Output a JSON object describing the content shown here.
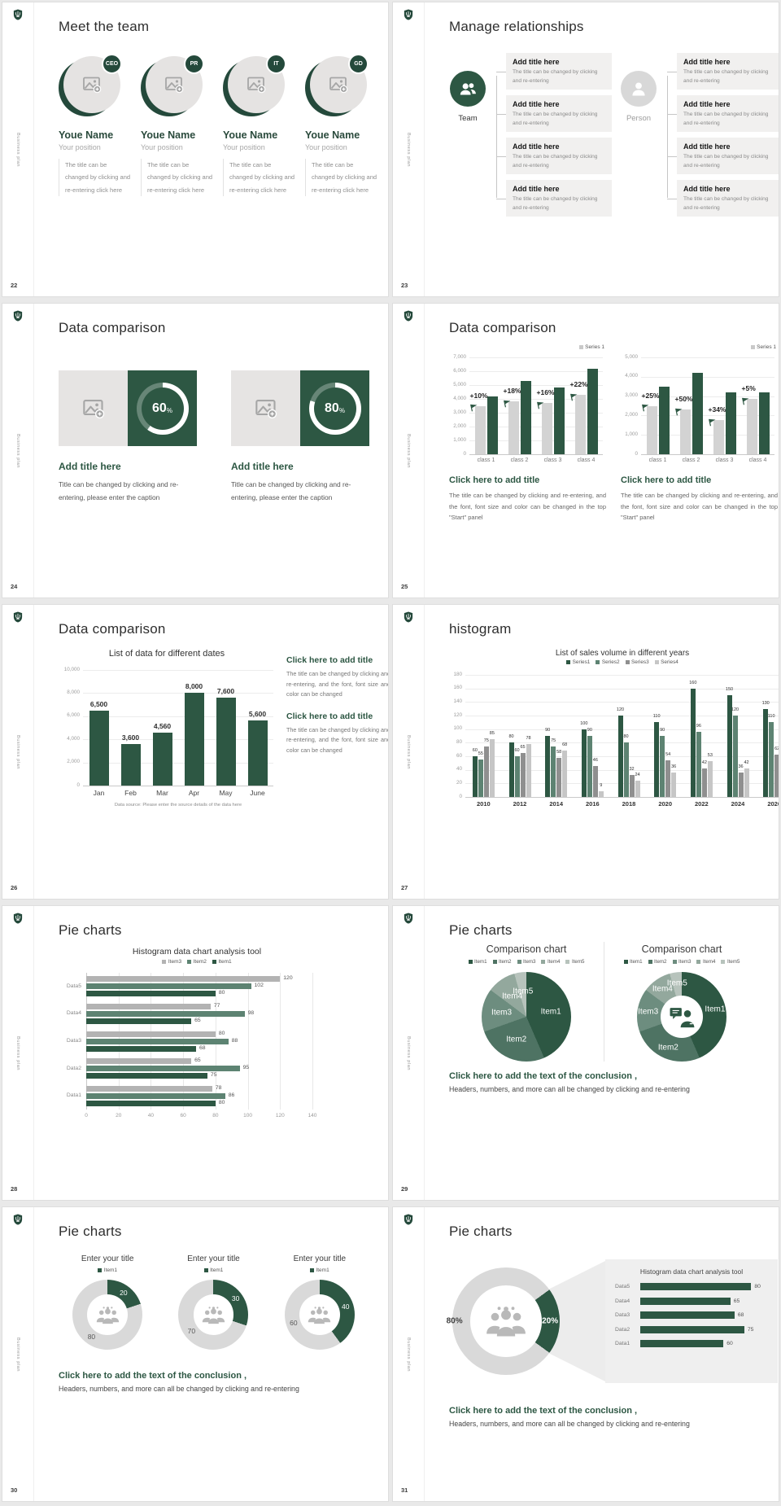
{
  "branding": {
    "sidebar_text": "Business plan",
    "logo": "shield-icon"
  },
  "colors": {
    "dark_green": "#2d5743",
    "mid_green": "#5d8372",
    "gray_series": "#8f8f8f",
    "light_series": "#c6c6c6",
    "placeholder": "#e5e3e2",
    "panel": "#efefef"
  },
  "slides": [
    {
      "num": "22",
      "title": "Meet the team",
      "members": [
        {
          "badge": "CEO",
          "name": "Youe Name",
          "position": "Your position",
          "desc": "The title can be changed by clicking and re-entering click here"
        },
        {
          "badge": "PR",
          "name": "Youe Name",
          "position": "Your position",
          "desc": "The title can be changed by clicking and re-entering click here"
        },
        {
          "badge": "IT",
          "name": "Youe Name",
          "position": "Your position",
          "desc": "The title can be changed by clicking and re-entering click here"
        },
        {
          "badge": "GD",
          "name": "Youe Name",
          "position": "Your position",
          "desc": "The title can be changed by clicking and re-entering click here"
        }
      ]
    },
    {
      "num": "23",
      "title": "Manage relationships",
      "groups": [
        {
          "label": "Team",
          "icon": "team-icon",
          "muted": false,
          "items": [
            {
              "title": "Add title here",
              "desc": "The title can be changed by clicking and re-entering"
            },
            {
              "title": "Add title here",
              "desc": "The title can be changed by clicking and re-entering"
            },
            {
              "title": "Add title here",
              "desc": "The title can be changed by clicking and re-entering"
            },
            {
              "title": "Add title here",
              "desc": "The title can be changed by clicking and re-entering"
            }
          ]
        },
        {
          "label": "Person",
          "icon": "person-icon",
          "muted": true,
          "items": [
            {
              "title": "Add title here",
              "desc": "The title can be changed by clicking and re-entering"
            },
            {
              "title": "Add title here",
              "desc": "The title can be changed by clicking and re-entering"
            },
            {
              "title": "Add title here",
              "desc": "The title can be changed by clicking and re-entering"
            },
            {
              "title": "Add title here",
              "desc": "The title can be changed by clicking and re-entering"
            }
          ]
        }
      ]
    },
    {
      "num": "24",
      "title": "Data comparison",
      "cards": [
        {
          "percent": 60,
          "title": "Add title here",
          "desc": "Title can be changed by clicking and re-entering, please enter the caption"
        },
        {
          "percent": 80,
          "title": "Add title here",
          "desc": "Title can be changed by clicking and re-entering, please enter the caption"
        }
      ]
    },
    {
      "num": "25",
      "title": "Data comparison",
      "blocks": [
        {
          "title": "Click here to add title",
          "desc": "The title can be changed by clicking and re-entering, and the font, font size and color can be changed in the top \"Start\" panel"
        },
        {
          "title": "Click here to add title",
          "desc": "The title can be changed by clicking and re-entering, and the font, font size and color can be changed in the top \"Start\" panel"
        }
      ]
    },
    {
      "num": "26",
      "title": "Data comparison",
      "blocks": [
        {
          "title": "Click here to add title",
          "desc": "The title can be changed by clicking and re-entering, and the font, font size and color can be changed"
        },
        {
          "title": "Click here to add title",
          "desc": "The title can be changed by clicking and re-entering, and the font, font size and color can be changed"
        }
      ]
    },
    {
      "num": "27",
      "title": "histogram"
    },
    {
      "num": "28",
      "title": "Pie charts"
    },
    {
      "num": "29",
      "title": "Pie charts",
      "conclusion": {
        "title": "Click here to add the text of the conclusion ,",
        "desc": "Headers, numbers, and more can all be changed by clicking and re-entering"
      }
    },
    {
      "num": "30",
      "title": "Pie charts",
      "conclusion": {
        "title": "Click here to add the text of the conclusion ,",
        "desc": "Headers, numbers, and more can all be changed by clicking and re-entering"
      }
    },
    {
      "num": "31",
      "title": "Pie charts",
      "conclusion": {
        "title": "Click here to add the text of the conclusion ,",
        "desc": "Headers, numbers, and more can all be changed by clicking and re-entering"
      }
    }
  ],
  "chart_data": {
    "s25_left": {
      "type": "bar",
      "categories": [
        "class 1",
        "class 2",
        "class 3",
        "class 4"
      ],
      "series": [
        {
          "name": "baseline",
          "color": "#d3d3d3",
          "values": [
            3500,
            3800,
            3700,
            4300
          ]
        },
        {
          "name": "Series 1",
          "color": "#2d5743",
          "values": [
            4200,
            5300,
            4800,
            6200
          ]
        }
      ],
      "annotations": [
        "+10%",
        "+18%",
        "+16%",
        "+22%"
      ],
      "ylim": [
        0,
        7000
      ],
      "ytick": 1000,
      "grid": true,
      "legend": [
        {
          "label": "Series 1",
          "color": "#c9c9c9"
        }
      ],
      "legend_pos": "top-right"
    },
    "s25_right": {
      "type": "bar",
      "categories": [
        "class 1",
        "class 2",
        "class 3",
        "class 4"
      ],
      "series": [
        {
          "name": "baseline",
          "color": "#d3d3d3",
          "values": [
            2500,
            2300,
            1750,
            2850
          ]
        },
        {
          "name": "Series 1",
          "color": "#2d5743",
          "values": [
            3500,
            4200,
            3200,
            3200
          ]
        }
      ],
      "annotations": [
        "+25%",
        "+50%",
        "+34%",
        "+5%"
      ],
      "ylim": [
        0,
        5000
      ],
      "ytick": 1000,
      "grid": true,
      "legend": [
        {
          "label": "Series 1",
          "color": "#c9c9c9"
        }
      ],
      "legend_pos": "top-right"
    },
    "s26": {
      "type": "bar",
      "title": "List of data for different dates",
      "categories": [
        "Jan",
        "Feb",
        "Mar",
        "Apr",
        "May",
        "June"
      ],
      "series": [
        {
          "name": "data",
          "color": "#2d5743",
          "values": [
            6500,
            3600,
            4560,
            8000,
            7600,
            5600
          ]
        }
      ],
      "data_labels": true,
      "ylim": [
        0,
        10000
      ],
      "ytick": 2000,
      "grid": true,
      "footnote": "Data source: Please enter the source details of the data here"
    },
    "s27": {
      "type": "bar",
      "title": "List of sales volume in different years",
      "categories": [
        "2010",
        "2012",
        "2014",
        "2016",
        "2018",
        "2020",
        "2022",
        "2024",
        "2026"
      ],
      "series": [
        {
          "name": "Series1",
          "color": "#2d5743",
          "values": [
            60,
            80,
            90,
            100,
            120,
            110,
            160,
            150,
            130
          ]
        },
        {
          "name": "Series2",
          "color": "#5d8372",
          "values": [
            55,
            60,
            75,
            90,
            80,
            90,
            96,
            120,
            110
          ]
        },
        {
          "name": "Series3",
          "color": "#8f8f8f",
          "values": [
            75,
            65,
            58,
            46,
            32,
            54,
            42,
            36,
            62
          ]
        },
        {
          "name": "Series4",
          "color": "#c6c6c6",
          "values": [
            85,
            78,
            68,
            9,
            24,
            36,
            53,
            42,
            32
          ]
        }
      ],
      "data_labels": true,
      "ylim": [
        0,
        180
      ],
      "ytick": 20,
      "grid": true,
      "legend": [
        {
          "label": "Series1",
          "color": "#2d5743"
        },
        {
          "label": "Series2",
          "color": "#5d8372"
        },
        {
          "label": "Series3",
          "color": "#8f8f8f"
        },
        {
          "label": "Series4",
          "color": "#c6c6c6"
        }
      ],
      "legend_pos": "top-center"
    },
    "s28": {
      "type": "hbar",
      "title": "Histogram data chart analysis tool",
      "categories": [
        "Data5",
        "Data4",
        "Data3",
        "Data2",
        "Data1"
      ],
      "series": [
        {
          "name": "Item3",
          "color": "#b3b3b3",
          "values": [
            120,
            77,
            80,
            65,
            78
          ]
        },
        {
          "name": "Item2",
          "color": "#5d8372",
          "values": [
            102,
            98,
            88,
            95,
            86
          ]
        },
        {
          "name": "Item1",
          "color": "#2d5743",
          "values": [
            80,
            65,
            68,
            75,
            80
          ]
        }
      ],
      "data_labels": true,
      "xlim": [
        0,
        140
      ],
      "xtick": 20,
      "grid": true,
      "legend": [
        {
          "label": "Item3",
          "color": "#b3b3b3"
        },
        {
          "label": "Item2",
          "color": "#5d8372"
        },
        {
          "label": "Item1",
          "color": "#2d5743"
        }
      ]
    },
    "s29_pie": {
      "type": "pie",
      "title": "Comparison chart",
      "legend": [
        {
          "label": "Item1",
          "color": "#2d5743"
        },
        {
          "label": "Item2",
          "color": "#4e7363"
        },
        {
          "label": "Item3",
          "color": "#6d8d7f"
        },
        {
          "label": "Item4",
          "color": "#93a89d"
        },
        {
          "label": "Item5",
          "color": "#b7c3bc"
        }
      ],
      "segments": [
        {
          "label": "Item1",
          "value": 50,
          "color": "#2d5743"
        },
        {
          "label": "Item2",
          "value": 30,
          "color": "#4e7363"
        },
        {
          "label": "Item3",
          "value": 18,
          "color": "#6d8d7f"
        },
        {
          "label": "Item4",
          "value": 12,
          "color": "#93a89d"
        },
        {
          "label": "Item5",
          "value": 5,
          "color": "#b7c3bc"
        }
      ]
    },
    "s29_donut": {
      "type": "donut",
      "title": "Comparison chart",
      "icon": "person-chat-icon",
      "legend": [
        {
          "label": "Item1",
          "color": "#2d5743"
        },
        {
          "label": "Item2",
          "color": "#4e7363"
        },
        {
          "label": "Item3",
          "color": "#6d8d7f"
        },
        {
          "label": "Item4",
          "color": "#93a89d"
        },
        {
          "label": "Item5",
          "color": "#b7c3bc"
        }
      ],
      "segments": [
        {
          "label": "Item1",
          "value": 50,
          "color": "#2d5743"
        },
        {
          "label": "Item2",
          "value": 30,
          "color": "#4e7363"
        },
        {
          "label": "Item3",
          "value": 18,
          "color": "#6d8d7f"
        },
        {
          "label": "Item4",
          "value": 12,
          "color": "#93a89d"
        },
        {
          "label": "Item5",
          "value": 5,
          "color": "#b7c3bc"
        }
      ]
    },
    "s30": [
      {
        "type": "donut",
        "title": "Enter your title",
        "icon": "people-group-icon",
        "legend": [
          {
            "label": "Item1",
            "color": "#2d5743"
          }
        ],
        "segments": [
          {
            "value": 20,
            "color": "#2d5743",
            "label": "20",
            "label_color": "#fff"
          },
          {
            "value": 80,
            "color": "#d9d9d9",
            "label": "80",
            "label_color": "#595959"
          }
        ]
      },
      {
        "type": "donut",
        "title": "Enter your title",
        "icon": "people-group-icon",
        "legend": [
          {
            "label": "Item1",
            "color": "#2d5743"
          }
        ],
        "segments": [
          {
            "value": 30,
            "color": "#2d5743",
            "label": "30",
            "label_color": "#fff"
          },
          {
            "value": 70,
            "color": "#d9d9d9",
            "label": "70",
            "label_color": "#595959"
          }
        ]
      },
      {
        "type": "donut",
        "title": "Enter your title",
        "icon": "people-group-icon",
        "legend": [
          {
            "label": "Item1",
            "color": "#2d5743"
          }
        ],
        "segments": [
          {
            "value": 40,
            "color": "#2d5743",
            "label": "40",
            "label_color": "#fff"
          },
          {
            "value": 60,
            "color": "#d9d9d9",
            "label": "60",
            "label_color": "#595959"
          }
        ]
      }
    ],
    "s31_donut": {
      "type": "donut",
      "icon": "people-group-icon",
      "start_angle": 54,
      "segments": [
        {
          "value": 20,
          "color": "#2d5743",
          "label": "20%",
          "label_color": "#fff",
          "label_bold": true
        },
        {
          "value": 80,
          "color": "#d9d9d9",
          "label": "80%",
          "label_color": "#3f3f3f",
          "label_bold": true,
          "label_pos": [
            2,
            50
          ]
        }
      ]
    },
    "s31_hbar": {
      "type": "hbar-simple",
      "title": "Histogram data chart analysis tool",
      "categories": [
        "Data5",
        "Data4",
        "Data3",
        "Data2",
        "Data1"
      ],
      "values": [
        80,
        65,
        68,
        75,
        60
      ],
      "color": "#2d5743",
      "xlim": [
        0,
        88
      ]
    },
    "s24_progress": {
      "type": "progress-donut",
      "percents": [
        60,
        80
      ]
    }
  }
}
